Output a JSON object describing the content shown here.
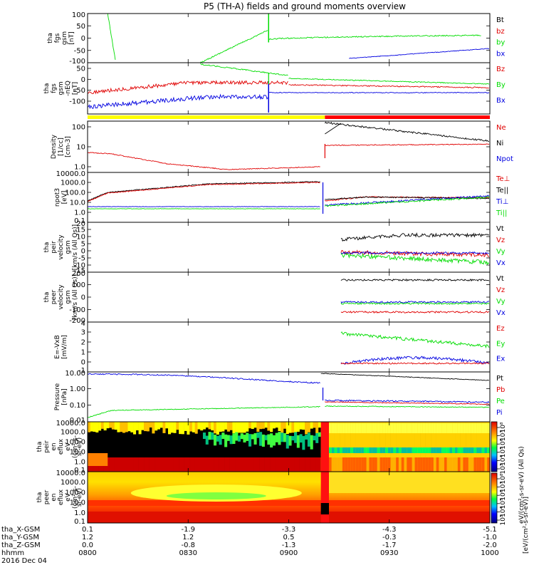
{
  "title": "P5 (TH-A) fields and ground moments overview",
  "colors": {
    "black": "#000000",
    "red": "#e00000",
    "green": "#00dd00",
    "blue": "#0000e0",
    "yellow": "#f5f000",
    "barYellow": "#ffff00",
    "barRed": "#ff0000"
  },
  "time_axis": {
    "tick_times": [
      "0800",
      "0830",
      "0900",
      "0930",
      "1000"
    ],
    "rows": [
      {
        "label": "tha_X-GSM",
        "values": [
          "0.1",
          "-1.9",
          "-3.3",
          "-4.3",
          "-5.1"
        ]
      },
      {
        "label": "tha_Y-GSM",
        "values": [
          "1.2",
          "1.2",
          "0.5",
          "-0.3",
          "-1.0"
        ]
      },
      {
        "label": "tha_Z-GSM",
        "values": [
          "0.0",
          "-0.8",
          "-1.3",
          "-1.7",
          "-2.0"
        ]
      },
      {
        "label": "hhmm",
        "values": [
          "0800",
          "0830",
          "0900",
          "0930",
          "1000"
        ]
      }
    ],
    "date": "2016 Dec 04"
  },
  "colorbar": {
    "ticks": [
      "10⁸",
      "10⁷",
      "10⁶",
      "10⁵",
      "10⁴",
      "10³"
    ],
    "label": "[eV/(cm²-s-sr-eV)]",
    "label2": "eV/(cm²-s-sr-eV) (All Qs)"
  },
  "chart_data": [
    {
      "type": "line",
      "ylabel": "tha fgs gsm [nT]",
      "ylabel_lines": [
        "tha",
        "fgs",
        "gsm",
        "[nT]"
      ],
      "ylim": [
        -100,
        100
      ],
      "yticks": [
        "100",
        "50",
        "0",
        "-50",
        "-100"
      ],
      "legend": [
        {
          "name": "Bt",
          "color": "black"
        },
        {
          "name": "bz",
          "color": "red"
        },
        {
          "name": "by",
          "color": "green"
        },
        {
          "name": "bx",
          "color": "blue"
        }
      ]
    },
    {
      "type": "line",
      "ylabel": "tha fgs gsm -nEQ [nT]",
      "ylabel_lines": [
        "tha",
        "fgs",
        "gsm",
        "-nEQ",
        "[nT]"
      ],
      "ylim": [
        -130,
        80
      ],
      "yticks": [
        "50",
        "0",
        "-50",
        "-100"
      ],
      "legend": [
        {
          "name": "Bz",
          "color": "red"
        },
        {
          "name": "By",
          "color": "green"
        },
        {
          "name": "Bx",
          "color": "blue"
        }
      ]
    },
    {
      "type": "line",
      "ylabel": "Density [1/cc] [cm-3]",
      "ylabel_lines": [
        "Density",
        "[1/cc]",
        "[cm-3]"
      ],
      "yscale": "log",
      "yticks": [
        "100",
        "10",
        "1.0"
      ],
      "legend": [
        {
          "name": "Ne",
          "color": "red"
        },
        {
          "name": "Ni",
          "color": "black"
        },
        {
          "name": "Npot",
          "color": "blue"
        }
      ]
    },
    {
      "type": "line",
      "ylabel": "npot3 [eV]",
      "ylabel_lines": [
        "npot3",
        "[eV]"
      ],
      "yscale": "log",
      "yticks": [
        "10000.0",
        "1000.0",
        "100.0",
        "10.0",
        "1.0",
        "0.1"
      ],
      "legend": [
        {
          "name": "Te⊥",
          "color": "red"
        },
        {
          "name": "Te||",
          "color": "black"
        },
        {
          "name": "Ti⊥",
          "color": "blue"
        },
        {
          "name": "Ti||",
          "color": "green"
        }
      ]
    },
    {
      "type": "line",
      "ylabel": "tha peir velocity gsm [km/s (All Qs)]",
      "ylabel_lines": [
        "tha",
        "peir",
        "velocity",
        "gsm",
        "[km/s (All Qs)]"
      ],
      "ylim": [
        -20,
        20
      ],
      "yticks": [
        "20",
        "15",
        "10",
        "5",
        "0",
        "-5",
        "-10",
        "-15"
      ],
      "legend": [
        {
          "name": "Vt",
          "color": "black"
        },
        {
          "name": "Vz",
          "color": "red"
        },
        {
          "name": "Vy",
          "color": "green"
        },
        {
          "name": "Vx",
          "color": "blue"
        }
      ]
    },
    {
      "type": "line",
      "ylabel": "tha peer velocity gsm [km/s (All Qs)]",
      "ylabel_lines": [
        "tha",
        "peer",
        "velocity",
        "gsm",
        "[km/s (All Qs)]"
      ],
      "ylim": [
        -200,
        200
      ],
      "yticks": [
        "200",
        "100",
        "0",
        "-100",
        "-200"
      ],
      "legend": [
        {
          "name": "Vt",
          "color": "black"
        },
        {
          "name": "Vz",
          "color": "red"
        },
        {
          "name": "Vy",
          "color": "green"
        },
        {
          "name": "Vx",
          "color": "blue"
        }
      ]
    },
    {
      "type": "line",
      "ylabel": "E=-VxB [mV/m]",
      "ylabel_lines": [
        "E=-VxB",
        "[mV/m]"
      ],
      "ylim": [
        -1,
        4
      ],
      "yticks": [
        "4",
        "3",
        "2",
        "1",
        "0",
        "-1"
      ],
      "legend": [
        {
          "name": "Ez",
          "color": "red"
        },
        {
          "name": "Ey",
          "color": "green"
        },
        {
          "name": "Ex",
          "color": "blue"
        }
      ]
    },
    {
      "type": "line",
      "ylabel": "Pressure [nPa]",
      "ylabel_lines": [
        "Pressure",
        "[nPa]"
      ],
      "yscale": "log",
      "yticks": [
        "10.00",
        "1.00",
        "0.10",
        "0.01"
      ],
      "legend": [
        {
          "name": "Pt",
          "color": "black"
        },
        {
          "name": "Pb",
          "color": "red"
        },
        {
          "name": "Pe",
          "color": "green"
        },
        {
          "name": "Pi",
          "color": "blue"
        }
      ]
    },
    {
      "type": "heatmap",
      "ylabel": "tha peir en eflux eV (cm²-s-sr-eV)",
      "ylabel_lines": [
        "tha",
        "peir",
        "en",
        "eflux",
        "eV",
        "(cm²-s-",
        "sr-eV)"
      ],
      "yscale": "log",
      "yticks": [
        "10000.0",
        "1000.0",
        "100.0",
        "10.0",
        "1.0",
        "0.1"
      ]
    },
    {
      "type": "heatmap",
      "ylabel": "tha peer en eflux eV (cm²-s-sr-eV)",
      "ylabel_lines": [
        "tha",
        "peer",
        "en",
        "eflux",
        "eV",
        "(cm²-s-",
        "sr-eV)"
      ],
      "yscale": "log",
      "yticks": [
        "10000.0",
        "1000.0",
        "100.0",
        "10.0",
        "1.0",
        "0.1"
      ]
    }
  ]
}
